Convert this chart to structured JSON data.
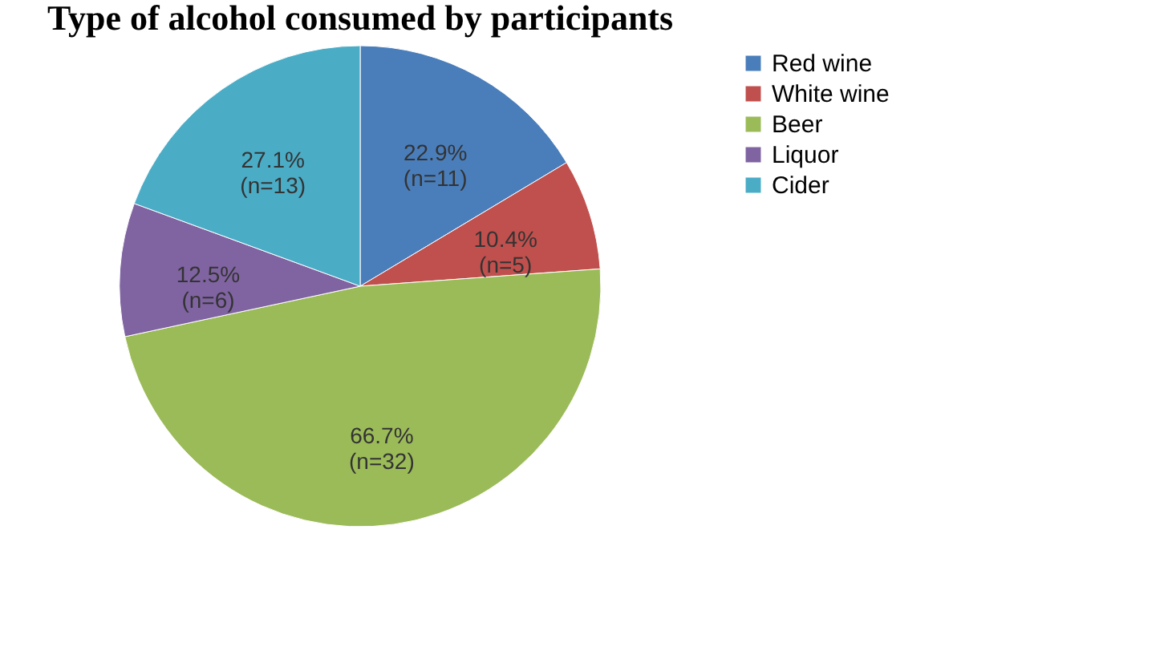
{
  "chart_data": {
    "type": "pie",
    "title": "Type of alcohol consumed by participants",
    "categories": [
      "Red wine",
      "White wine",
      "Beer",
      "Liquor",
      "Cider"
    ],
    "values": [
      22.9,
      10.4,
      66.7,
      12.5,
      27.1
    ],
    "value_labels": [
      "22.9%\n(n=11)",
      "10.4%\n(n=5)",
      "66.7%\n(n=32)",
      "12.5%\n(n=6)",
      "27.1%\n(n=13)"
    ],
    "colors": [
      "#4a7ebb",
      "#c0504d",
      "#9bbb59",
      "#8064a2",
      "#4bacc6"
    ],
    "legend": "right"
  }
}
